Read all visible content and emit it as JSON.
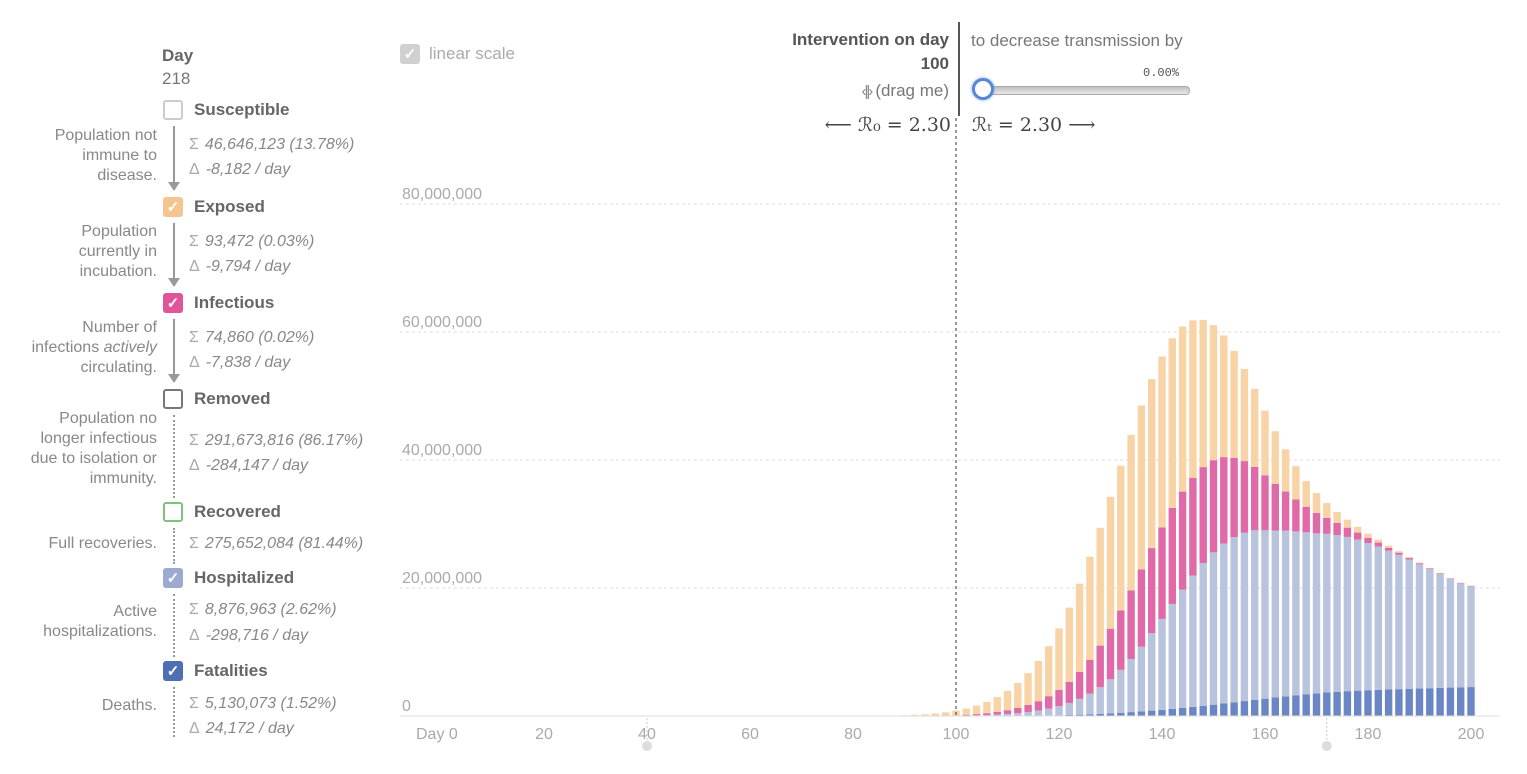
{
  "sidebar": {
    "day_heading": "Day",
    "day_value": "218",
    "categories": [
      {
        "label": "Susceptible",
        "checked": false,
        "color": "#cccccc",
        "description_lines": [
          "Population not",
          "immune to",
          "disease."
        ],
        "stats": [
          {
            "symbol": "Σ",
            "text": "46,646,123 (13.78%)"
          },
          {
            "symbol": "Δ",
            "text": "-8,182 / day"
          }
        ]
      },
      {
        "label": "Exposed",
        "checked": true,
        "color": "#f5c58f",
        "description_lines": [
          "Population",
          "currently in",
          "incubation."
        ],
        "stats": [
          {
            "symbol": "Σ",
            "text": "93,472 (0.03%)"
          },
          {
            "symbol": "Δ",
            "text": "-9,794 / day"
          }
        ]
      },
      {
        "label": "Infectious",
        "checked": true,
        "color": "#e0549a",
        "description_lines": [
          "Number of",
          "infections actively",
          "circulating."
        ],
        "stats": [
          {
            "symbol": "Σ",
            "text": "74,860 (0.02%)"
          },
          {
            "symbol": "Δ",
            "text": "-7,838 / day"
          }
        ]
      },
      {
        "label": "Removed",
        "checked": false,
        "color": "#777777",
        "description_lines": [
          "Population no",
          "longer infectious",
          "due to isolation or",
          "immunity."
        ],
        "stats": [
          {
            "symbol": "Σ",
            "text": "291,673,816 (86.17%)"
          },
          {
            "symbol": "Δ",
            "text": "-284,147 / day"
          }
        ]
      },
      {
        "label": "Recovered",
        "checked": false,
        "color": "#7cc47c",
        "description_lines": [
          "Full recoveries."
        ],
        "stats": [
          {
            "symbol": "Σ",
            "text": "275,652,084 (81.44%)"
          }
        ]
      },
      {
        "label": "Hospitalized",
        "checked": true,
        "color": "#9daad0",
        "description_lines": [
          "Active",
          "hospitalizations."
        ],
        "stats": [
          {
            "symbol": "Σ",
            "text": "8,876,963 (2.62%)"
          },
          {
            "symbol": "Δ",
            "text": "-298,716 / day"
          }
        ]
      },
      {
        "label": "Fatalities",
        "checked": true,
        "color": "#4f6fb5",
        "description_lines": [
          "Deaths."
        ],
        "stats": [
          {
            "symbol": "Σ",
            "text": "5,130,073 (1.52%)"
          },
          {
            "symbol": "Δ",
            "text": "24,172 / day"
          }
        ]
      }
    ]
  },
  "controls": {
    "linear_scale_label": "linear scale",
    "intervention_title": "Intervention on day",
    "intervention_day": "100",
    "drag_hint": "(drag me)",
    "decrease_text": "to decrease transmission by",
    "decrease_value": "0.00%",
    "decrease_fraction": 0,
    "r0_text": "⟵ ℛ₀ = 2.30",
    "rt_text": "ℛₜ = 2.30 ⟶"
  },
  "chart_data": {
    "type": "bar",
    "stacked": true,
    "x_tick_labels": [
      "Day 0",
      "20",
      "40",
      "60",
      "80",
      "100",
      "120",
      "140",
      "160",
      "180",
      "200"
    ],
    "x_ticks": [
      0,
      20,
      40,
      60,
      80,
      100,
      120,
      140,
      160,
      180,
      200
    ],
    "y_tick_labels": [
      "0",
      "20,000,000",
      "40,000,000",
      "60,000,000",
      "80,000,000"
    ],
    "y_ticks": [
      0,
      20000000,
      40000000,
      60000000,
      80000000
    ],
    "ylim": [
      0,
      90000000
    ],
    "xlim": [
      0,
      202
    ],
    "grid": true,
    "intervention_line_day": 100,
    "bar_days": [
      88,
      90,
      92,
      94,
      96,
      98,
      100,
      102,
      104,
      106,
      108,
      110,
      112,
      114,
      116,
      118,
      120,
      122,
      124,
      126,
      128,
      130,
      132,
      134,
      136,
      138,
      140,
      142,
      144,
      146,
      148,
      150,
      152,
      154,
      156,
      158,
      160,
      162,
      164,
      166,
      168,
      170,
      172,
      174,
      176,
      178,
      180,
      182,
      184,
      186,
      188,
      190,
      192,
      194,
      196,
      198,
      200
    ],
    "series": [
      {
        "name": "Fatalities",
        "color": "#6b86c4",
        "values": [
          0,
          0,
          0,
          0,
          0,
          0,
          0,
          0,
          0,
          0,
          0,
          10000,
          20000,
          40000,
          60000,
          90000,
          120000,
          160000,
          210000,
          270000,
          340000,
          420000,
          510000,
          610000,
          720000,
          840000,
          970000,
          1110000,
          1260000,
          1420000,
          1590000,
          1770000,
          1950000,
          2140000,
          2330000,
          2520000,
          2710000,
          2890000,
          3070000,
          3240000,
          3400000,
          3540000,
          3670000,
          3780000,
          3880000,
          3960000,
          4030000,
          4090000,
          4140000,
          4190000,
          4240000,
          4290000,
          4340000,
          4390000,
          4440000,
          4480000,
          4520000
        ]
      },
      {
        "name": "Hospitalized",
        "color": "#b8c3de",
        "values": [
          0,
          0,
          0,
          0,
          0,
          10000,
          30000,
          60000,
          100000,
          150000,
          220000,
          310000,
          430000,
          590000,
          800000,
          1070000,
          1420000,
          1880000,
          2470000,
          3220000,
          4160000,
          5320000,
          6700000,
          8300000,
          10100000,
          12100000,
          14200000,
          16400000,
          18500000,
          20500000,
          22300000,
          23800000,
          25000000,
          25800000,
          26300000,
          26500000,
          26300000,
          26100000,
          25900000,
          25600000,
          25300000,
          25000000,
          24800000,
          24500000,
          24100000,
          23600000,
          23000000,
          22400000,
          21700000,
          21000000,
          20200000,
          19400000,
          18600000,
          17800000,
          17000000,
          16300000,
          15800000
        ]
      },
      {
        "name": "Infectious",
        "color": "#e06aa7",
        "values": [
          0,
          0,
          0,
          0,
          20000,
          40000,
          80000,
          130000,
          200000,
          290000,
          410000,
          580000,
          800000,
          1090000,
          1460000,
          1940000,
          2550000,
          3300000,
          4200000,
          5300000,
          6500000,
          7900000,
          9300000,
          10700000,
          12100000,
          13300000,
          14300000,
          15000000,
          15300000,
          15300000,
          15000000,
          14400000,
          13500000,
          12400000,
          11200000,
          9900000,
          8600000,
          7300000,
          6100000,
          5000000,
          4000000,
          3200000,
          2500000,
          1900000,
          1450000,
          1100000,
          820000,
          610000,
          450000,
          330000,
          240000,
          180000,
          130000,
          95000,
          70000,
          50000,
          40000
        ]
      },
      {
        "name": "Exposed",
        "color": "#f8d3a6",
        "values": [
          80000,
          120000,
          180000,
          260000,
          370000,
          520000,
          720000,
          980000,
          1320000,
          1760000,
          2320000,
          3020000,
          3900000,
          4980000,
          6280000,
          7820000,
          9600000,
          11600000,
          13800000,
          16100000,
          18400000,
          20600000,
          22600000,
          24300000,
          25600000,
          26400000,
          26700000,
          26500000,
          25800000,
          24600000,
          23000000,
          21100000,
          19000000,
          16700000,
          14400000,
          12200000,
          10100000,
          8200000,
          6600000,
          5200000,
          4000000,
          3100000,
          2300000,
          1700000,
          1250000,
          900000,
          650000,
          460000,
          330000,
          230000,
          160000,
          110000,
          80000,
          55000,
          40000,
          30000,
          20000
        ]
      }
    ]
  }
}
